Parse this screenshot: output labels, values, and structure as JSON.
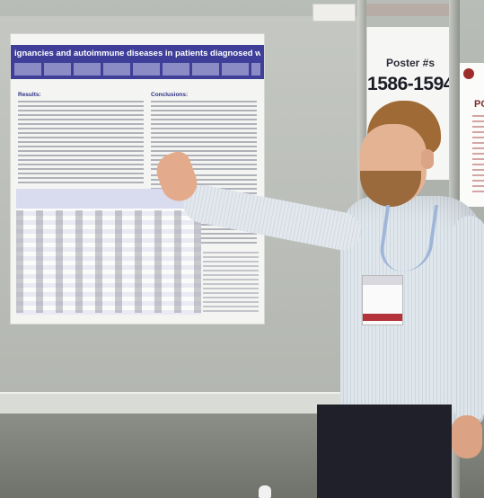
{
  "photo": {
    "poster_title": "ignancies and autoimmune diseases in patients diagnosed with chronic myeloid leukemia",
    "results_heading": "Results:",
    "conclusions_heading": "Conclusions:",
    "sign_label": "Poster #s",
    "sign_range": "1586-1594",
    "right_poster_heading": "POS"
  },
  "colors": {
    "poster_header": "#3f3f9a",
    "shirt": "#dfe6ec",
    "background_board": "#b9bdb8"
  }
}
